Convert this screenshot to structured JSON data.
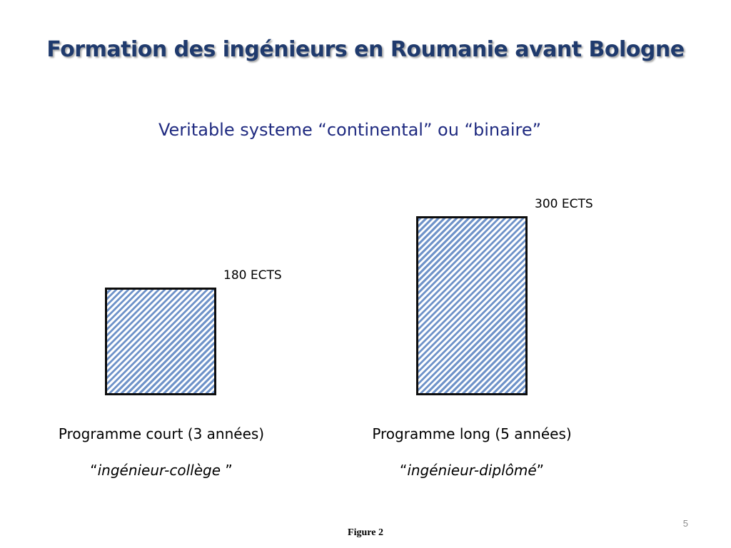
{
  "slide": {
    "title": "Formation des ingénieurs en Roumanie avant Bologne",
    "subtitle": "Veritable systeme “continental” ou “binaire”",
    "page_number": "5",
    "figure_label": "Figure 2"
  },
  "chart_data": {
    "type": "bar",
    "categories": [
      "Programme court (3 années)",
      "Programme  long (5 années)"
    ],
    "values": [
      180,
      300
    ],
    "value_labels": [
      "180 ECTS",
      "300 ECTS"
    ],
    "subcaptions": [
      {
        "open": "“",
        "text": "ingénieur-collège ",
        "close": "”"
      },
      {
        "open": "“",
        "text": "ingénieur-diplômé",
        "close": "”"
      }
    ],
    "unit": "ECTS",
    "fill_pattern": "diagonal-hatch",
    "colors": {
      "hatch": "#6f93c9",
      "border": "#0d0d0d",
      "title": "#1f3a6d",
      "subtitle": "#1f2a80"
    }
  }
}
